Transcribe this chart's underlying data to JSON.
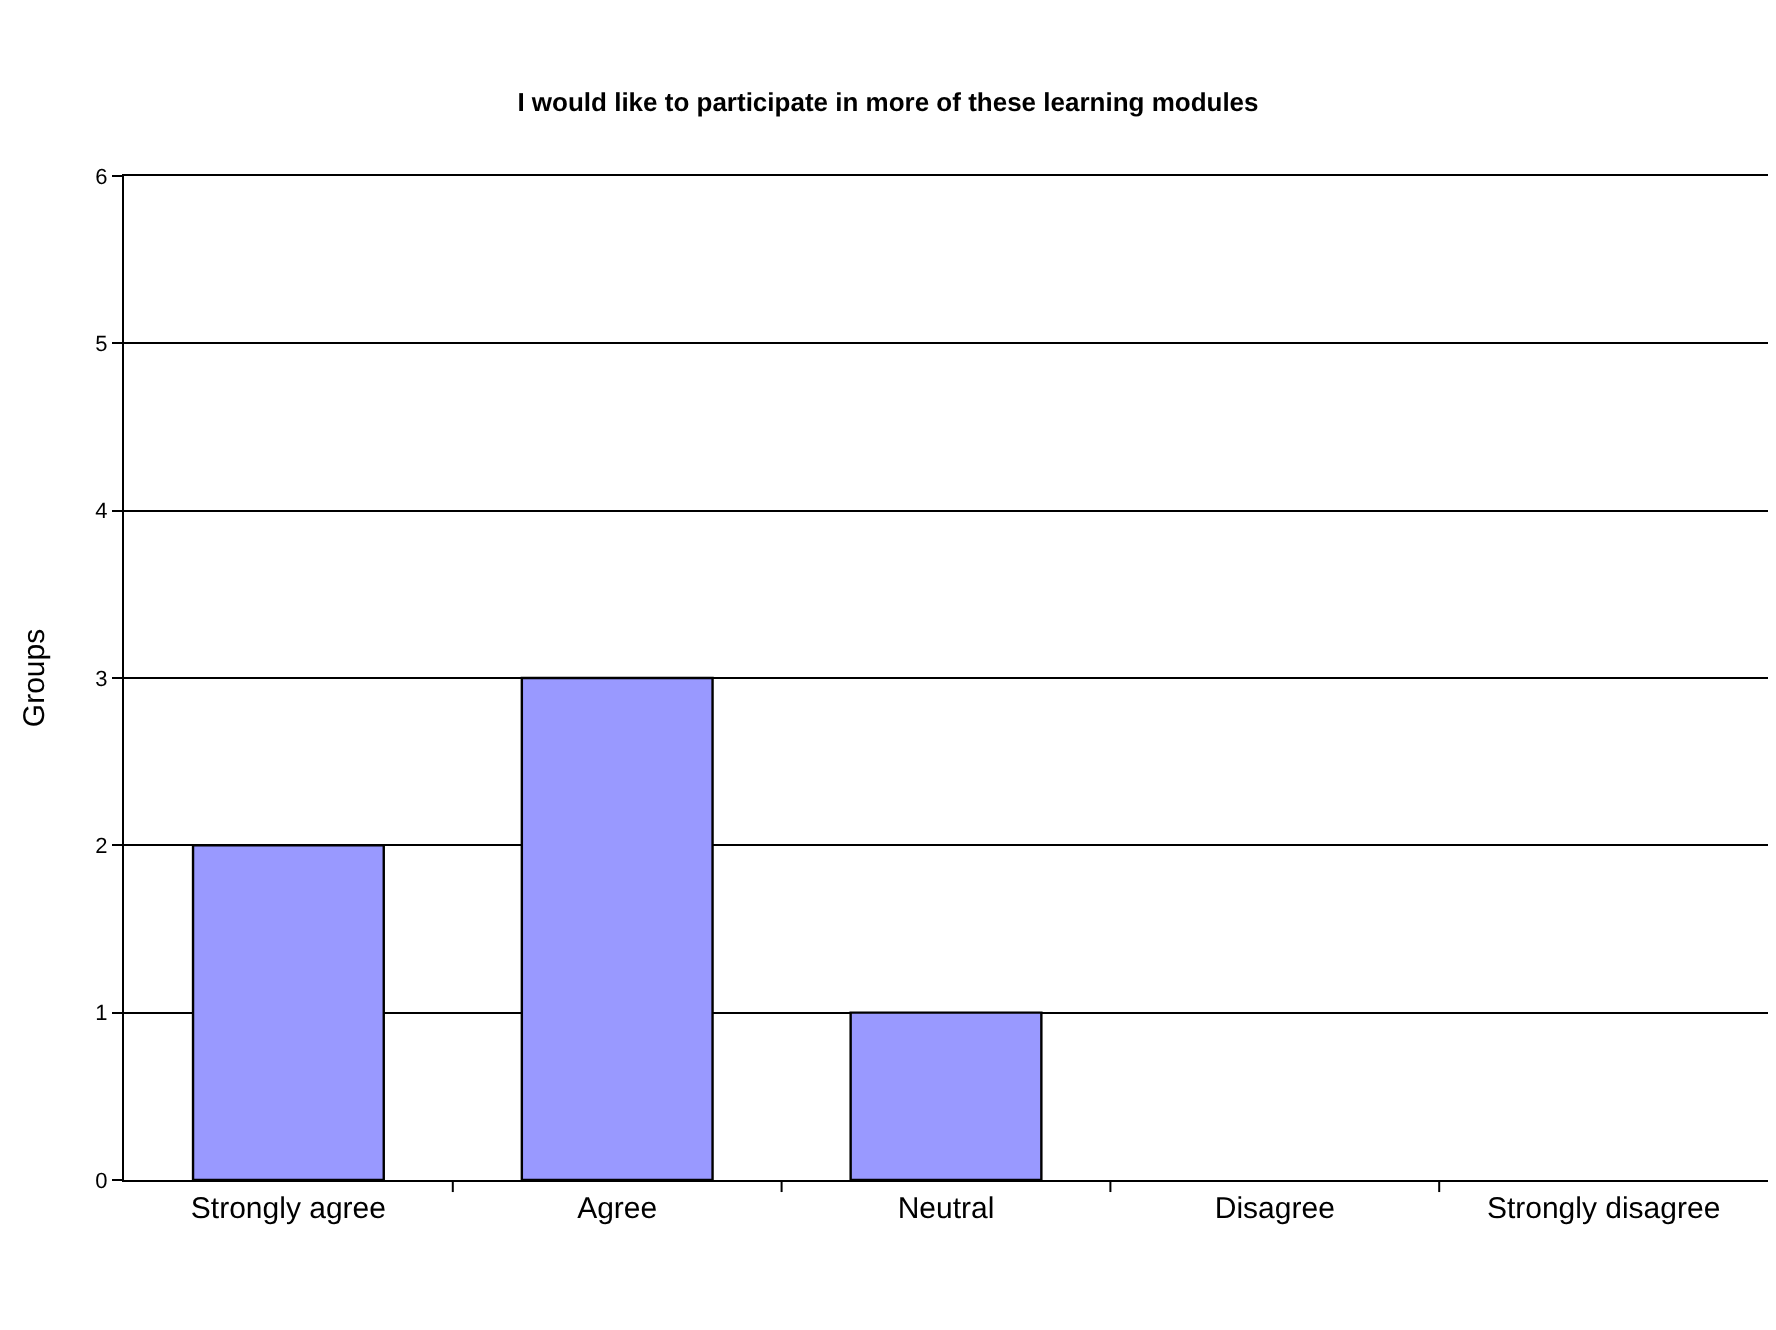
{
  "chart_data": {
    "type": "bar",
    "title": "I would like to participate in more of these learning modules",
    "ylabel": "Groups",
    "categories": [
      "Strongly agree",
      "Agree",
      "Neutral",
      "Disagree",
      "Strongly disagree"
    ],
    "values": [
      2,
      3,
      1,
      0,
      0
    ],
    "color": "#9999ff",
    "ylim": [
      0,
      6
    ],
    "yticks": [
      0,
      1,
      2,
      3,
      4,
      5,
      6
    ],
    "grid": "y",
    "legend": false
  }
}
